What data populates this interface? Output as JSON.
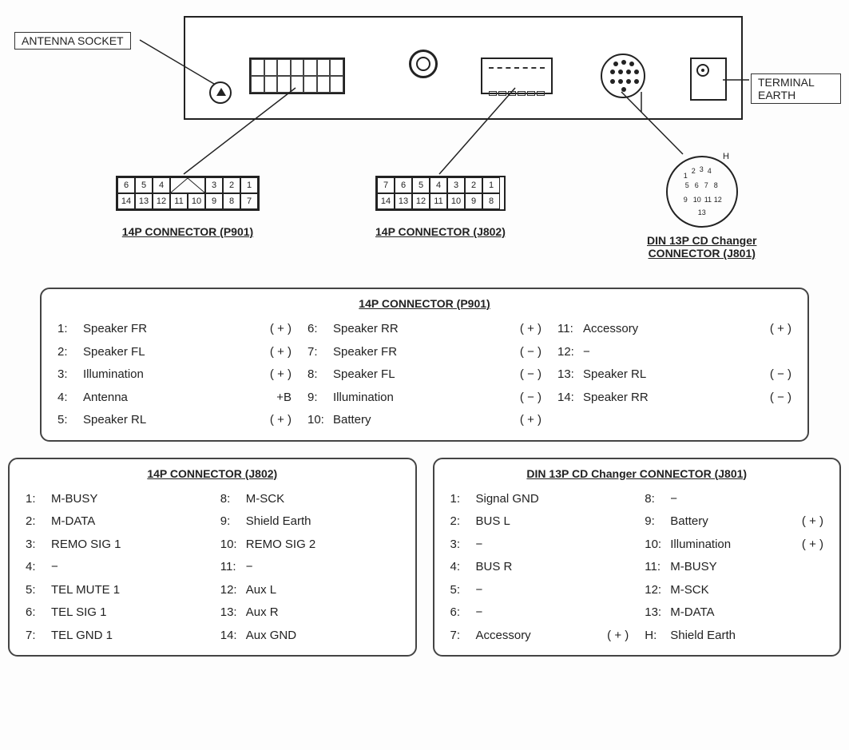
{
  "labels": {
    "antenna": "ANTENNA  SOCKET",
    "terminal_earth": "TERMINAL  EARTH",
    "conn_p901": "14P CONNECTOR (P901)",
    "conn_j802": "14P CONNECTOR (J802)",
    "conn_j801_a": "DIN 13P CD Changer",
    "conn_j801_b": "CONNECTOR (J801)",
    "din_h": "H"
  },
  "pins_p901_top": [
    "6",
    "5",
    "4",
    "3",
    "2",
    "1"
  ],
  "pins_p901_bot": [
    "14",
    "13",
    "12",
    "11",
    "10",
    "9",
    "8",
    "7"
  ],
  "pins_j802_top": [
    "7",
    "6",
    "5",
    "4",
    "3",
    "2",
    "1"
  ],
  "pins_j802_bot": [
    "14",
    "13",
    "12",
    "11",
    "10",
    "9",
    "8"
  ],
  "table_p901": {
    "title": "14P CONNECTOR (P901)",
    "col1": [
      {
        "n": "1:",
        "t": "Speaker FR",
        "p": "( + )"
      },
      {
        "n": "2:",
        "t": "Speaker FL",
        "p": "( + )"
      },
      {
        "n": "3:",
        "t": "Illumination",
        "p": "( + )"
      },
      {
        "n": "4:",
        "t": "Antenna",
        "p": "+B"
      },
      {
        "n": "5:",
        "t": "Speaker RL",
        "p": "( + )"
      }
    ],
    "col2": [
      {
        "n": "6:",
        "t": "Speaker RR",
        "p": "( + )"
      },
      {
        "n": "7:",
        "t": "Speaker FR",
        "p": "( − )"
      },
      {
        "n": "8:",
        "t": "Speaker FL",
        "p": "( − )"
      },
      {
        "n": "9:",
        "t": "Illumination",
        "p": "( − )"
      },
      {
        "n": "10:",
        "t": "Battery",
        "p": "( + )"
      }
    ],
    "col3": [
      {
        "n": "11:",
        "t": "Accessory",
        "p": "( + )"
      },
      {
        "n": "12:",
        "t": "−",
        "p": ""
      },
      {
        "n": "13:",
        "t": "Speaker RL",
        "p": "( − )"
      },
      {
        "n": "14:",
        "t": "Speaker RR",
        "p": "( − )"
      }
    ]
  },
  "table_j802": {
    "title": "14P CONNECTOR (J802)",
    "col1": [
      {
        "n": "1:",
        "t": "M-BUSY",
        "p": ""
      },
      {
        "n": "2:",
        "t": "M-DATA",
        "p": ""
      },
      {
        "n": "3:",
        "t": "REMO SIG 1",
        "p": ""
      },
      {
        "n": "4:",
        "t": "−",
        "p": ""
      },
      {
        "n": "5:",
        "t": "TEL MUTE 1",
        "p": ""
      },
      {
        "n": "6:",
        "t": "TEL SIG 1",
        "p": ""
      },
      {
        "n": "7:",
        "t": "TEL GND 1",
        "p": ""
      }
    ],
    "col2": [
      {
        "n": "8:",
        "t": "M-SCK",
        "p": ""
      },
      {
        "n": "9:",
        "t": "Shield Earth",
        "p": ""
      },
      {
        "n": "10:",
        "t": "REMO SIG 2",
        "p": ""
      },
      {
        "n": "11:",
        "t": "−",
        "p": ""
      },
      {
        "n": "12:",
        "t": "Aux L",
        "p": ""
      },
      {
        "n": "13:",
        "t": "Aux R",
        "p": ""
      },
      {
        "n": "14:",
        "t": "Aux GND",
        "p": ""
      }
    ]
  },
  "table_j801": {
    "title": "DIN 13P CD Changer CONNECTOR (J801)",
    "col1": [
      {
        "n": "1:",
        "t": "Signal GND",
        "p": ""
      },
      {
        "n": "2:",
        "t": "BUS L",
        "p": ""
      },
      {
        "n": "3:",
        "t": "−",
        "p": ""
      },
      {
        "n": "4:",
        "t": "BUS R",
        "p": ""
      },
      {
        "n": "5:",
        "t": "−",
        "p": ""
      },
      {
        "n": "6:",
        "t": "−",
        "p": ""
      },
      {
        "n": "7:",
        "t": "Accessory",
        "p": "( + )"
      }
    ],
    "col2": [
      {
        "n": "8:",
        "t": "−",
        "p": ""
      },
      {
        "n": "9:",
        "t": "Battery",
        "p": "( + )"
      },
      {
        "n": "10:",
        "t": "Illumination",
        "p": "( + )"
      },
      {
        "n": "11:",
        "t": "M-BUSY",
        "p": ""
      },
      {
        "n": "12:",
        "t": "M-SCK",
        "p": ""
      },
      {
        "n": "13:",
        "t": "M-DATA",
        "p": ""
      },
      {
        "n": "H:",
        "t": "Shield Earth",
        "p": ""
      }
    ]
  },
  "din_pins": [
    "4",
    "3",
    "2",
    "1",
    "8",
    "7",
    "6",
    "5",
    "12",
    "11",
    "10",
    "9",
    "13"
  ],
  "colors": {
    "stroke": "#222222",
    "bg": "#fdfdfd",
    "box_border": "#444444"
  }
}
